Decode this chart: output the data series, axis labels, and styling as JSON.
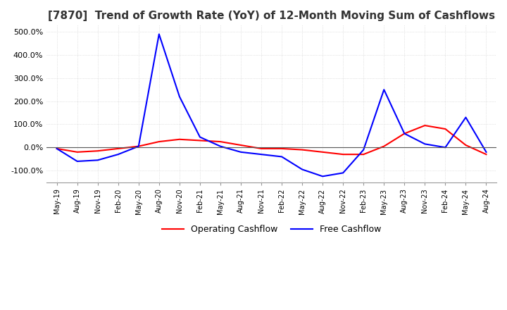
{
  "title": "[7870]  Trend of Growth Rate (YoY) of 12-Month Moving Sum of Cashflows",
  "title_fontsize": 11,
  "ylim": [
    -150,
    530
  ],
  "yticks": [
    -100,
    0,
    100,
    200,
    300,
    400,
    500
  ],
  "ytick_labels": [
    "-100.0%",
    "0.0%",
    "100.0%",
    "200.0%",
    "300.0%",
    "400.0%",
    "500.0%"
  ],
  "legend_labels": [
    "Operating Cashflow",
    "Free Cashflow"
  ],
  "x_labels": [
    "May-19",
    "Aug-19",
    "Nov-19",
    "Feb-20",
    "May-20",
    "Aug-20",
    "Nov-20",
    "Feb-21",
    "May-21",
    "Aug-21",
    "Nov-21",
    "Feb-22",
    "May-22",
    "Aug-22",
    "Nov-22",
    "Feb-23",
    "May-23",
    "Aug-23",
    "Nov-23",
    "Feb-24",
    "May-24",
    "Aug-24"
  ],
  "operating_cf": [
    -5,
    -20,
    -15,
    -5,
    5,
    25,
    35,
    30,
    25,
    10,
    -5,
    -5,
    -10,
    -20,
    -30,
    -30,
    5,
    60,
    95,
    80,
    10,
    -30
  ],
  "free_cf": [
    -5,
    -60,
    -55,
    -30,
    5,
    490,
    220,
    45,
    5,
    -20,
    -30,
    -40,
    -95,
    -125,
    -110,
    -10,
    250,
    60,
    15,
    0,
    130,
    -20
  ],
  "operating_color": "#ff0000",
  "free_color": "#0000ff",
  "bg_color": "white",
  "grid_color": "#cccccc",
  "title_color": "#333333"
}
